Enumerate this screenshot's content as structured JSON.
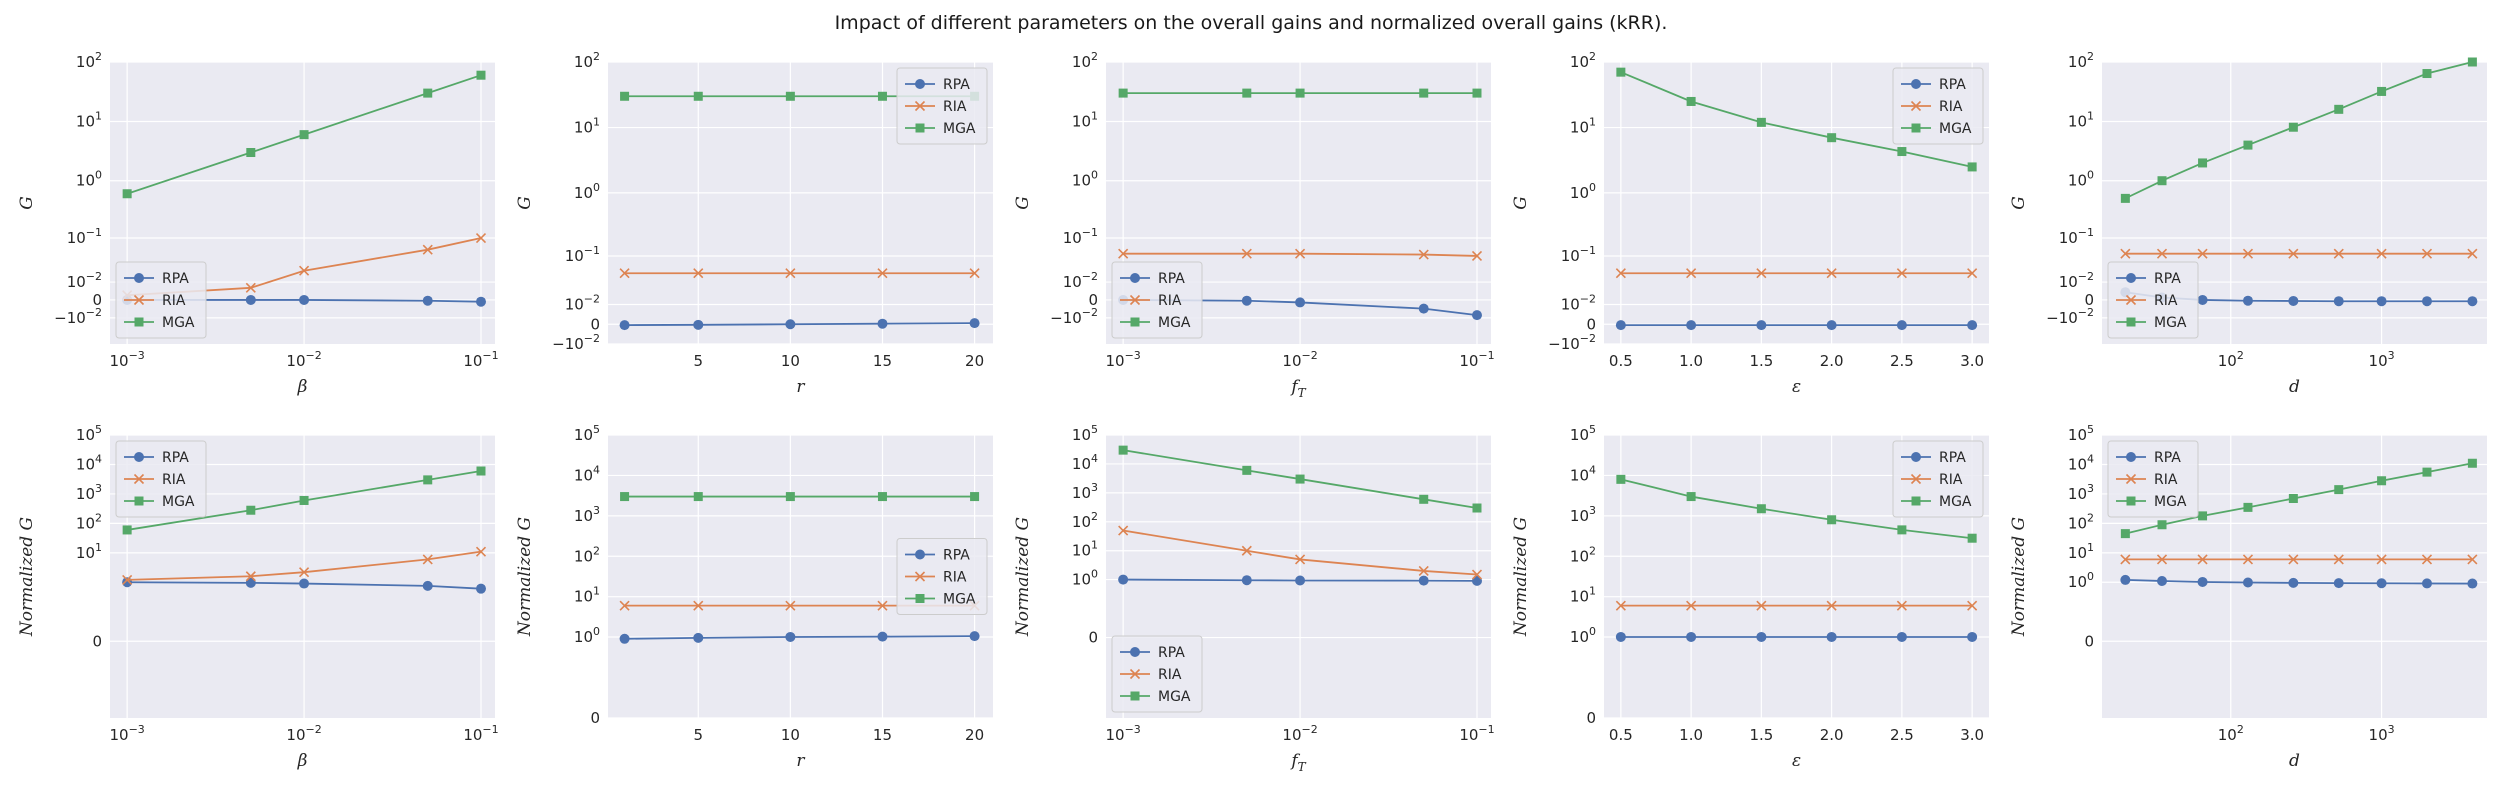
{
  "figure": {
    "title": "Impact of different parameters on the overall gains and normalized overall gains (kRR)."
  },
  "colors": {
    "background": "#eaeaf2",
    "grid": "#ffffff",
    "RPA": "#4c72b0",
    "RIA": "#dd8452",
    "MGA": "#55a868"
  },
  "chart_data": [
    {
      "id": "beta-gain",
      "type": "line",
      "xlabel": "β",
      "xlabel_sub": "",
      "ylabel": "G",
      "xscale": "log",
      "xlim": [
        0.0008,
        0.12
      ],
      "xticks": [
        {
          "v": 0.001,
          "b": "10",
          "e": "−3"
        },
        {
          "v": 0.01,
          "b": "10",
          "e": "−2"
        },
        {
          "v": 0.1,
          "b": "10",
          "e": "−1"
        }
      ],
      "yscale": "symlog",
      "ylim": [
        -0.045,
        100
      ],
      "yticks": [
        {
          "v": 100,
          "b": "10",
          "e": "2"
        },
        {
          "v": 10,
          "b": "10",
          "e": "1"
        },
        {
          "v": 1,
          "b": "10",
          "e": "0"
        },
        {
          "v": 0.1,
          "b": "10",
          "e": "−1"
        },
        {
          "v": 0.01,
          "b": "10",
          "e": "−2"
        },
        {
          "v": 0,
          "b": "0",
          "e": ""
        },
        {
          "v": -0.01,
          "b": "−10",
          "e": "−2"
        }
      ],
      "legend": "lower-left",
      "x": [
        0.001,
        0.005,
        0.01,
        0.05,
        0.1
      ],
      "series": [
        {
          "name": "RPA",
          "values": [
            0.0,
            0.0,
            0.0,
            -0.0003,
            -0.0007
          ]
        },
        {
          "name": "RIA",
          "values": [
            0.002,
            0.006,
            0.021,
            0.06,
            0.1
          ]
        },
        {
          "name": "MGA",
          "values": [
            0.6,
            3.0,
            6.0,
            30,
            60
          ]
        }
      ]
    },
    {
      "id": "r-gain",
      "type": "line",
      "xlabel": "r",
      "xlabel_sub": "",
      "ylabel": "G",
      "xscale": "linear",
      "xlim": [
        0.1,
        21
      ],
      "xticks": [
        {
          "v": 5,
          "b": "5",
          "e": ""
        },
        {
          "v": 10,
          "b": "10",
          "e": ""
        },
        {
          "v": 15,
          "b": "15",
          "e": ""
        },
        {
          "v": 20,
          "b": "20",
          "e": ""
        }
      ],
      "yscale": "symlog",
      "ylim": [
        -0.01,
        100
      ],
      "yticks": [
        {
          "v": 100,
          "b": "10",
          "e": "2"
        },
        {
          "v": 10,
          "b": "10",
          "e": "1"
        },
        {
          "v": 1,
          "b": "10",
          "e": "0"
        },
        {
          "v": 0.1,
          "b": "10",
          "e": "−1"
        },
        {
          "v": 0.01,
          "b": "10",
          "e": "−2"
        },
        {
          "v": 0,
          "b": "0",
          "e": ""
        },
        {
          "v": -0.01,
          "b": "−10",
          "e": "−2"
        }
      ],
      "legend": "top-right",
      "x": [
        1,
        5,
        10,
        15,
        20
      ],
      "series": [
        {
          "name": "RPA",
          "values": [
            -0.0003,
            -0.0002,
            0.0,
            0.0002,
            0.0004
          ]
        },
        {
          "name": "RIA",
          "values": [
            0.05,
            0.05,
            0.05,
            0.05,
            0.05
          ]
        },
        {
          "name": "MGA",
          "values": [
            30,
            30,
            30,
            30,
            30
          ]
        }
      ]
    },
    {
      "id": "fT-gain",
      "type": "line",
      "xlabel": "f",
      "xlabel_sub": "T",
      "ylabel": "G",
      "xscale": "log",
      "xlim": [
        0.0008,
        0.12
      ],
      "xticks": [
        {
          "v": 0.001,
          "b": "10",
          "e": "−3"
        },
        {
          "v": 0.01,
          "b": "10",
          "e": "−2"
        },
        {
          "v": 0.1,
          "b": "10",
          "e": "−1"
        }
      ],
      "yscale": "symlog",
      "ylim": [
        -0.045,
        100
      ],
      "yticks": [
        {
          "v": 100,
          "b": "10",
          "e": "2"
        },
        {
          "v": 10,
          "b": "10",
          "e": "1"
        },
        {
          "v": 1,
          "b": "10",
          "e": "0"
        },
        {
          "v": 0.1,
          "b": "10",
          "e": "−1"
        },
        {
          "v": 0.01,
          "b": "10",
          "e": "−2"
        },
        {
          "v": 0,
          "b": "0",
          "e": ""
        },
        {
          "v": -0.01,
          "b": "−10",
          "e": "−2"
        }
      ],
      "legend": "lower-left",
      "x": [
        0.001,
        0.005,
        0.01,
        0.05,
        0.1
      ],
      "series": [
        {
          "name": "RPA",
          "values": [
            0.0,
            -0.0003,
            -0.001,
            -0.004,
            -0.008
          ]
        },
        {
          "name": "RIA",
          "values": [
            0.05,
            0.05,
            0.05,
            0.048,
            0.045
          ]
        },
        {
          "name": "MGA",
          "values": [
            30,
            30,
            30,
            30,
            30
          ]
        }
      ]
    },
    {
      "id": "eps-gain",
      "type": "line",
      "xlabel": "ε",
      "xlabel_sub": "",
      "ylabel": "G",
      "xscale": "linear",
      "xlim": [
        0.38,
        3.12
      ],
      "xticks": [
        {
          "v": 0.5,
          "b": "0.5",
          "e": ""
        },
        {
          "v": 1.0,
          "b": "1.0",
          "e": ""
        },
        {
          "v": 1.5,
          "b": "1.5",
          "e": ""
        },
        {
          "v": 2.0,
          "b": "2.0",
          "e": ""
        },
        {
          "v": 2.5,
          "b": "2.5",
          "e": ""
        },
        {
          "v": 3.0,
          "b": "3.0",
          "e": ""
        }
      ],
      "yscale": "symlog",
      "ylim": [
        -0.01,
        100
      ],
      "yticks": [
        {
          "v": 100,
          "b": "10",
          "e": "2"
        },
        {
          "v": 10,
          "b": "10",
          "e": "1"
        },
        {
          "v": 1,
          "b": "10",
          "e": "0"
        },
        {
          "v": 0.1,
          "b": "10",
          "e": "−1"
        },
        {
          "v": 0.01,
          "b": "10",
          "e": "−2"
        },
        {
          "v": 0,
          "b": "0",
          "e": ""
        },
        {
          "v": -0.01,
          "b": "−10",
          "e": "−2"
        }
      ],
      "legend": "top-right",
      "x": [
        0.5,
        1.0,
        1.5,
        2.0,
        2.5,
        3.0
      ],
      "series": [
        {
          "name": "RPA",
          "values": [
            -0.0003,
            -0.0003,
            -0.0003,
            -0.0003,
            -0.0003,
            -0.0003
          ]
        },
        {
          "name": "RIA",
          "values": [
            0.05,
            0.05,
            0.05,
            0.05,
            0.05,
            0.05
          ]
        },
        {
          "name": "MGA",
          "values": [
            70,
            25,
            12,
            7,
            4.3,
            2.5
          ]
        }
      ]
    },
    {
      "id": "d-gain",
      "type": "line",
      "xlabel": "d",
      "xlabel_sub": "",
      "ylabel": "G",
      "xscale": "log",
      "xlim": [
        14,
        5000
      ],
      "xticks": [
        {
          "v": 100,
          "b": "10",
          "e": "2"
        },
        {
          "v": 1000,
          "b": "10",
          "e": "3"
        }
      ],
      "yscale": "symlog",
      "ylim": [
        -0.045,
        100
      ],
      "yticks": [
        {
          "v": 100,
          "b": "10",
          "e": "2"
        },
        {
          "v": 10,
          "b": "10",
          "e": "1"
        },
        {
          "v": 1,
          "b": "10",
          "e": "0"
        },
        {
          "v": 0.1,
          "b": "10",
          "e": "−1"
        },
        {
          "v": 0.01,
          "b": "10",
          "e": "−2"
        },
        {
          "v": 0,
          "b": "0",
          "e": ""
        },
        {
          "v": -0.01,
          "b": "−10",
          "e": "−2"
        }
      ],
      "legend": "lower-left",
      "x": [
        20,
        35,
        65,
        130,
        260,
        520,
        1000,
        2000,
        4000
      ],
      "series": [
        {
          "name": "RPA",
          "values": [
            0.0035,
            0.001,
            0.0,
            -0.0003,
            -0.0004,
            -0.0005,
            -0.0005,
            -0.0005,
            -0.0005
          ]
        },
        {
          "name": "RIA",
          "values": [
            0.05,
            0.05,
            0.05,
            0.05,
            0.05,
            0.05,
            0.05,
            0.05,
            0.05
          ]
        },
        {
          "name": "MGA",
          "values": [
            0.5,
            1.0,
            2.0,
            4,
            8,
            16,
            32,
            64,
            100
          ]
        }
      ]
    },
    {
      "id": "beta-norm",
      "type": "line",
      "xlabel": "β",
      "xlabel_sub": "",
      "ylabel": "Normalized G",
      "xscale": "log",
      "xlim": [
        0.0008,
        0.12
      ],
      "xticks": [
        {
          "v": 0.001,
          "b": "10",
          "e": "−3"
        },
        {
          "v": 0.01,
          "b": "10",
          "e": "−2"
        },
        {
          "v": 0.1,
          "b": "10",
          "e": "−1"
        }
      ],
      "yscale": "symlog",
      "ylim": [
        -4,
        100000
      ],
      "yticks": [
        {
          "v": 100000,
          "b": "10",
          "e": "5"
        },
        {
          "v": 10000,
          "b": "10",
          "e": "4"
        },
        {
          "v": 1000,
          "b": "10",
          "e": "3"
        },
        {
          "v": 100,
          "b": "10",
          "e": "2"
        },
        {
          "v": 10,
          "b": "10",
          "e": "1"
        },
        {
          "v": 0,
          "b": "0",
          "e": ""
        }
      ],
      "legend": "top-left",
      "x": [
        0.001,
        0.005,
        0.01,
        0.05,
        0.1
      ],
      "series": [
        {
          "name": "RPA",
          "values": [
            1.0,
            0.95,
            0.9,
            0.75,
            0.6
          ]
        },
        {
          "name": "RIA",
          "values": [
            1.2,
            1.6,
            2.2,
            6,
            11
          ]
        },
        {
          "name": "MGA",
          "values": [
            60,
            280,
            600,
            3000,
            6000
          ]
        }
      ]
    },
    {
      "id": "r-norm",
      "type": "line",
      "xlabel": "r",
      "xlabel_sub": "",
      "ylabel": "Normalized G",
      "xscale": "linear",
      "xlim": [
        0.1,
        21
      ],
      "xticks": [
        {
          "v": 5,
          "b": "5",
          "e": ""
        },
        {
          "v": 10,
          "b": "10",
          "e": ""
        },
        {
          "v": 15,
          "b": "15",
          "e": ""
        },
        {
          "v": 20,
          "b": "20",
          "e": ""
        }
      ],
      "yscale": "symlog",
      "ylim": [
        0,
        100000
      ],
      "yticks": [
        {
          "v": 100000,
          "b": "10",
          "e": "5"
        },
        {
          "v": 10000,
          "b": "10",
          "e": "4"
        },
        {
          "v": 1000,
          "b": "10",
          "e": "3"
        },
        {
          "v": 100,
          "b": "10",
          "e": "2"
        },
        {
          "v": 10,
          "b": "10",
          "e": "1"
        },
        {
          "v": 1,
          "b": "10",
          "e": "0"
        },
        {
          "v": 0,
          "b": "0",
          "e": ""
        }
      ],
      "legend": "middle-right",
      "x": [
        1,
        5,
        10,
        15,
        20
      ],
      "series": [
        {
          "name": "RPA",
          "values": [
            0.9,
            0.95,
            1.0,
            1.02,
            1.05
          ]
        },
        {
          "name": "RIA",
          "values": [
            6,
            6,
            6,
            6,
            6
          ]
        },
        {
          "name": "MGA",
          "values": [
            3000,
            3000,
            3000,
            3000,
            3000
          ]
        }
      ]
    },
    {
      "id": "fT-norm",
      "type": "line",
      "xlabel": "f",
      "xlabel_sub": "T",
      "ylabel": "Normalized G",
      "xscale": "log",
      "xlim": [
        0.0008,
        0.12
      ],
      "xticks": [
        {
          "v": 0.001,
          "b": "10",
          "e": "−3"
        },
        {
          "v": 0.01,
          "b": "10",
          "e": "−2"
        },
        {
          "v": 0.1,
          "b": "10",
          "e": "−1"
        }
      ],
      "yscale": "symlog",
      "ylim": [
        -6,
        100000
      ],
      "yticks": [
        {
          "v": 100000,
          "b": "10",
          "e": "5"
        },
        {
          "v": 10000,
          "b": "10",
          "e": "4"
        },
        {
          "v": 1000,
          "b": "10",
          "e": "3"
        },
        {
          "v": 100,
          "b": "10",
          "e": "2"
        },
        {
          "v": 10,
          "b": "10",
          "e": "1"
        },
        {
          "v": 1,
          "b": "10",
          "e": "0"
        },
        {
          "v": 0,
          "b": "0",
          "e": ""
        }
      ],
      "legend": "lower-left",
      "x": [
        0.001,
        0.005,
        0.01,
        0.05,
        0.1
      ],
      "series": [
        {
          "name": "RPA",
          "values": [
            1.0,
            0.95,
            0.93,
            0.92,
            0.9
          ]
        },
        {
          "name": "RIA",
          "values": [
            50,
            10,
            5,
            2,
            1.5
          ]
        },
        {
          "name": "MGA",
          "values": [
            30000,
            6000,
            3000,
            600,
            300
          ]
        }
      ]
    },
    {
      "id": "eps-norm",
      "type": "line",
      "xlabel": "ε",
      "xlabel_sub": "",
      "ylabel": "Normalized G",
      "xscale": "linear",
      "xlim": [
        0.38,
        3.12
      ],
      "xticks": [
        {
          "v": 0.5,
          "b": "0.5",
          "e": ""
        },
        {
          "v": 1.0,
          "b": "1.0",
          "e": ""
        },
        {
          "v": 1.5,
          "b": "1.5",
          "e": ""
        },
        {
          "v": 2.0,
          "b": "2.0",
          "e": ""
        },
        {
          "v": 2.5,
          "b": "2.5",
          "e": ""
        },
        {
          "v": 3.0,
          "b": "3.0",
          "e": ""
        }
      ],
      "yscale": "symlog",
      "ylim": [
        0,
        100000
      ],
      "yticks": [
        {
          "v": 100000,
          "b": "10",
          "e": "5"
        },
        {
          "v": 10000,
          "b": "10",
          "e": "4"
        },
        {
          "v": 1000,
          "b": "10",
          "e": "3"
        },
        {
          "v": 100,
          "b": "10",
          "e": "2"
        },
        {
          "v": 10,
          "b": "10",
          "e": "1"
        },
        {
          "v": 1,
          "b": "10",
          "e": "0"
        },
        {
          "v": 0,
          "b": "0",
          "e": ""
        }
      ],
      "legend": "top-right",
      "x": [
        0.5,
        1.0,
        1.5,
        2.0,
        2.5,
        3.0
      ],
      "series": [
        {
          "name": "RPA",
          "values": [
            1,
            1,
            1,
            1,
            1,
            1
          ]
        },
        {
          "name": "RIA",
          "values": [
            6,
            6,
            6,
            6,
            6,
            6
          ]
        },
        {
          "name": "MGA",
          "values": [
            8000,
            3000,
            1500,
            800,
            450,
            280
          ]
        }
      ]
    },
    {
      "id": "d-norm",
      "type": "line",
      "xlabel": "d",
      "xlabel_sub": "",
      "ylabel": "Normalized G",
      "xscale": "log",
      "xlim": [
        14,
        5000
      ],
      "xticks": [
        {
          "v": 100,
          "b": "10",
          "e": "2"
        },
        {
          "v": 1000,
          "b": "10",
          "e": "3"
        }
      ],
      "yscale": "symlog",
      "ylim": [
        -4,
        100000
      ],
      "yticks": [
        {
          "v": 100000,
          "b": "10",
          "e": "5"
        },
        {
          "v": 10000,
          "b": "10",
          "e": "4"
        },
        {
          "v": 1000,
          "b": "10",
          "e": "3"
        },
        {
          "v": 100,
          "b": "10",
          "e": "2"
        },
        {
          "v": 10,
          "b": "10",
          "e": "1"
        },
        {
          "v": 1,
          "b": "10",
          "e": "0"
        },
        {
          "v": 0,
          "b": "0",
          "e": ""
        }
      ],
      "legend": "top-left",
      "x": [
        20,
        35,
        65,
        130,
        260,
        520,
        1000,
        2000,
        4000
      ],
      "series": [
        {
          "name": "RPA",
          "values": [
            1.2,
            1.1,
            1.02,
            0.98,
            0.95,
            0.93,
            0.92,
            0.91,
            0.9
          ]
        },
        {
          "name": "RIA",
          "values": [
            6,
            6,
            6,
            6,
            6,
            6,
            6,
            6,
            6
          ]
        },
        {
          "name": "MGA",
          "values": [
            45,
            90,
            180,
            350,
            700,
            1400,
            2800,
            5500,
            11000
          ]
        }
      ]
    }
  ]
}
